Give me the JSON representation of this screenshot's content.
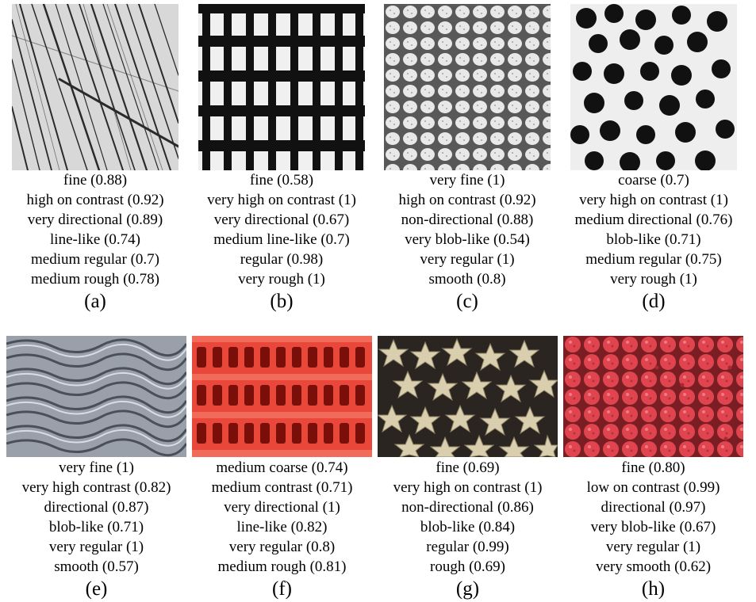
{
  "panels": [
    {
      "letter": "(a)",
      "texture": "grass-lines",
      "descriptors": [
        "fine (0.88)",
        "high on contrast (0.92)",
        "very directional (0.89)",
        "line-like (0.74)",
        "medium regular (0.7)",
        "medium rough (0.78)"
      ]
    },
    {
      "letter": "(b)",
      "texture": "woven-mesh",
      "descriptors": [
        "fine (0.58)",
        "very high on contrast (1)",
        "very directional (0.67)",
        "medium line-like (0.7)",
        "regular (0.98)",
        "very rough (1)"
      ]
    },
    {
      "letter": "(c)",
      "texture": "scale-cells",
      "descriptors": [
        "very fine (1)",
        "high on contrast (0.92)",
        "non-directional (0.88)",
        "very blob-like (0.54)",
        "very regular (1)",
        "smooth (0.8)"
      ]
    },
    {
      "letter": "(d)",
      "texture": "black-dots",
      "descriptors": [
        "coarse (0.7)",
        "very high on contrast (1)",
        "medium directional (0.76)",
        "blob-like (0.71)",
        "medium regular (0.75)",
        "very rough (1)"
      ]
    },
    {
      "letter": "(e)",
      "texture": "sand-ripples",
      "descriptors": [
        "very fine (1)",
        "very high contrast (0.82)",
        "directional (0.87)",
        "blob-like (0.71)",
        "very regular (1)",
        "smooth (0.57)"
      ]
    },
    {
      "letter": "(f)",
      "texture": "red-grid",
      "descriptors": [
        "medium coarse (0.74)",
        "medium contrast (0.71)",
        "very directional (1)",
        "line-like (0.82)",
        "very regular (0.8)",
        "medium rough (0.81)"
      ]
    },
    {
      "letter": "(g)",
      "texture": "star-pasta",
      "descriptors": [
        "fine (0.69)",
        "very high on contrast (1)",
        "non-directional (0.86)",
        "blob-like (0.84)",
        "regular (0.99)",
        "rough (0.69)"
      ]
    },
    {
      "letter": "(h)",
      "texture": "raspberries",
      "descriptors": [
        "fine (0.80)",
        "low on contrast (0.99)",
        "directional (0.97)",
        "very blob-like (0.67)",
        "very regular (1)",
        "very smooth (0.62)"
      ]
    }
  ]
}
